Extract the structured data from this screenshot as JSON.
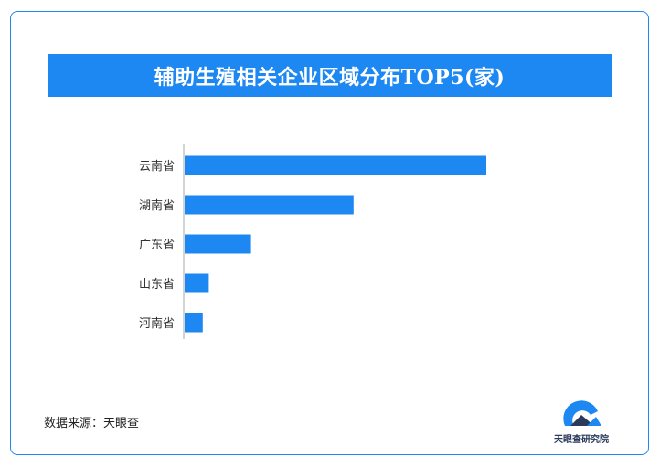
{
  "title": "辅助生殖相关企业区域分布TOP5(家)",
  "source": "数据来源：天眼查",
  "logo_text": "天眼查研究院",
  "colors": {
    "accent": "#1e88f2",
    "axis": "#aaaaaa"
  },
  "chart_data": {
    "type": "bar",
    "orientation": "horizontal",
    "title": "辅助生殖相关企业区域分布TOP5(家)",
    "categories": [
      "云南省",
      "湖南省",
      "广东省",
      "山东省",
      "河南省"
    ],
    "values": [
      100,
      56,
      22,
      8,
      6
    ],
    "xlim": [
      0,
      100
    ],
    "grid": false,
    "legend": "none"
  }
}
